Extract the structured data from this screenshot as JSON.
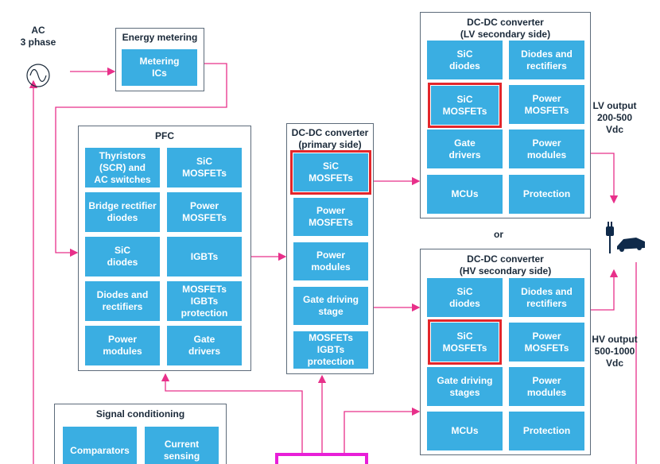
{
  "colors": {
    "tile": "#3aaee2",
    "connector": "#e8308a",
    "highlight": "#e3262b",
    "control_border": "#e81fd8"
  },
  "ac": {
    "label": "AC\n3 phase",
    "icon": "sine-wave-source-icon"
  },
  "energy_metering": {
    "title": "Energy metering",
    "tiles": [
      "Metering\nICs"
    ]
  },
  "pfc": {
    "title": "PFC",
    "tiles": [
      "Thyristors\n(SCR) and\nAC switches",
      "SiC\nMOSFETs",
      "Bridge rectifier\ndiodes",
      "Power\nMOSFETs",
      "SiC\ndiodes",
      "IGBTs",
      "Diodes and\nrectifiers",
      "MOSFETs\nIGBTs\nprotection",
      "Power\nmodules",
      "Gate\ndrivers"
    ]
  },
  "dcdc_primary": {
    "title": "DC-DC converter\n(primary side)",
    "tiles": [
      "SiC\nMOSFETs",
      "Power\nMOSFETs",
      "Power\nmodules",
      "Gate driving\nstage",
      "MOSFETs\nIGBTs\nprotection"
    ],
    "highlighted": [
      0
    ]
  },
  "dcdc_lv": {
    "title": "DC-DC converter\n(LV secondary side)",
    "tiles": [
      "SiC\ndiodes",
      "Diodes and\nrectifiers",
      "SiC\nMOSFETs",
      "Power\nMOSFETs",
      "Gate\ndrivers",
      "Power\nmodules",
      "MCUs",
      "Protection"
    ],
    "highlighted": [
      2
    ]
  },
  "or_label": "or",
  "dcdc_hv": {
    "title": "DC-DC converter\n(HV secondary side)",
    "tiles": [
      "SiC\ndiodes",
      "Diodes and\nrectifiers",
      "SiC\nMOSFETs",
      "Power\nMOSFETs",
      "Gate driving\nstages",
      "Power\nmodules",
      "MCUs",
      "Protection"
    ],
    "highlighted": [
      2
    ]
  },
  "lv_output": "LV output\n200-500\nVdc",
  "hv_output": "HV output\n500-1000\nVdc",
  "ev_icon": "plug-and-car-icon",
  "signal_conditioning": {
    "title": "Signal conditioning",
    "tiles": [
      "Comparators",
      "Current\nsensing"
    ]
  }
}
